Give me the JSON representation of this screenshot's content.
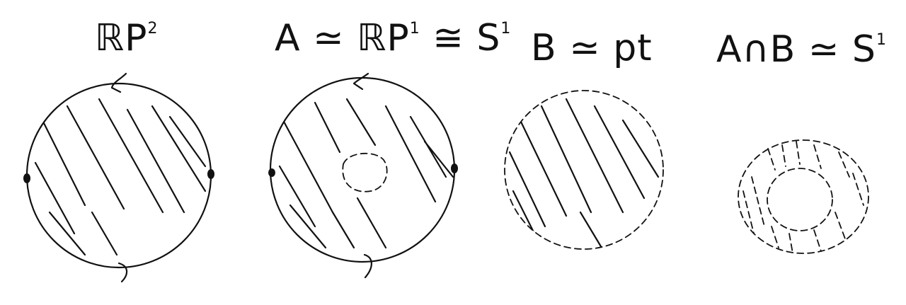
{
  "panels": [
    {
      "id": "rp2",
      "label": "ℝP",
      "sup": "2"
    },
    {
      "id": "A",
      "label": "A ≃ ℝP",
      "sup": "1",
      "tail": " ≅ S",
      "sup2": "1"
    },
    {
      "id": "B",
      "label": "B ≃ pt"
    },
    {
      "id": "AcapB",
      "label": "A∩B ≃ S",
      "sup": "1"
    }
  ],
  "colors": {
    "ink": "#111111",
    "background": "#ffffff"
  }
}
